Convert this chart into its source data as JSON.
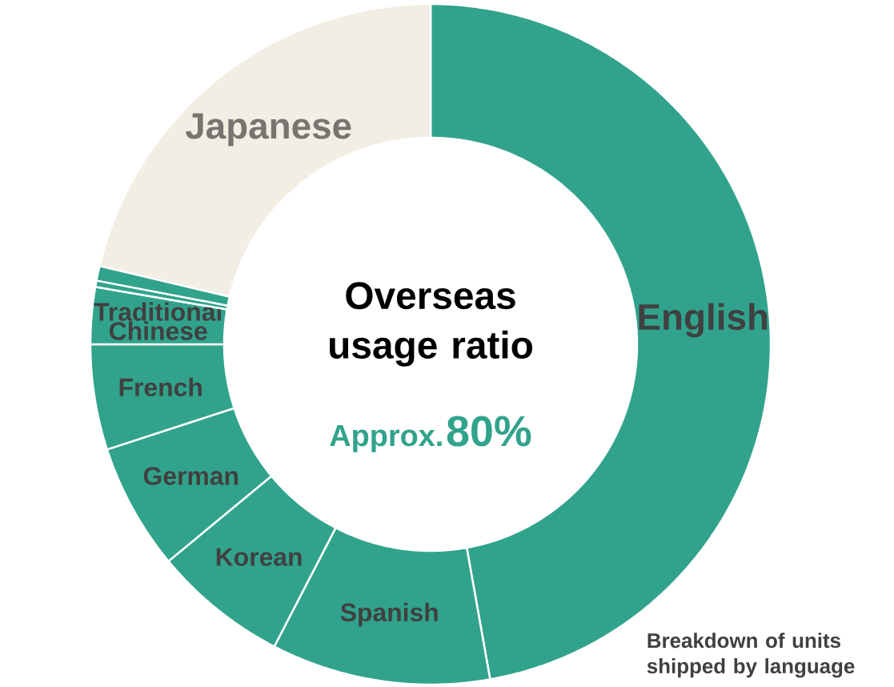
{
  "chart_data": {
    "type": "donut",
    "categories": [
      "English",
      "Spanish",
      "Korean",
      "German",
      "French",
      "Traditional Chinese",
      null,
      null,
      "Japanese"
    ],
    "values": [
      47.2,
      10.4,
      6.4,
      6.0,
      5.0,
      2.7,
      0.3,
      0.7,
      21.3
    ],
    "colors": [
      "#31a38c",
      "#31a38c",
      "#31a38c",
      "#31a38c",
      "#31a38c",
      "#31a38c",
      "#31a38c",
      "#31a38c",
      "#f2eee4"
    ],
    "annotations": [
      "Overseas usage ratio",
      "Approx.",
      "80%",
      "Breakdown of units shipped by language"
    ]
  }
}
